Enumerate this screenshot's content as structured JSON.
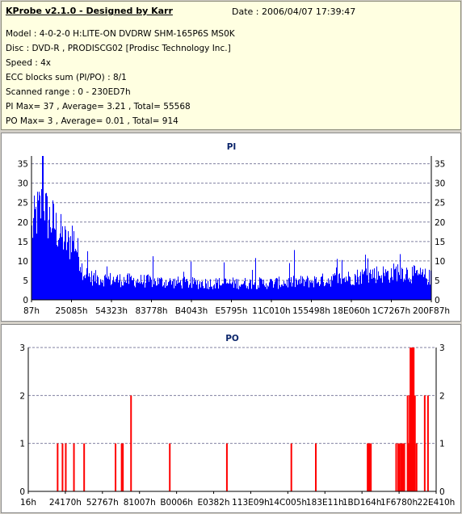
{
  "header": {
    "title": "KProbe v2.1.0 - Designed by Karr",
    "date": "Date : 2006/04/07 17:39:47",
    "lines": [
      "Model : 4-0-2-0 H:LITE-ON DVDRW SHM-165P6S MS0K",
      "Disc : DVD-R , PRODISCG02 [Prodisc Technology Inc.]",
      "Speed : 4x",
      "ECC blocks sum (PI/PO) : 8/1",
      "Scanned range : 0 - 230ED7h",
      "PI Max= 37 , Average= 3.21 , Total= 55568",
      "PO Max= 3 , Average= 0.01 , Total= 914"
    ]
  },
  "chart_data": [
    {
      "type": "bar",
      "title": "PI",
      "color": "#0000ff",
      "ylim": [
        0,
        37
      ],
      "yticks": [
        0,
        5,
        10,
        15,
        20,
        25,
        30,
        35
      ],
      "xticks": [
        "87h",
        "25085h",
        "54323h",
        "83778h",
        "B4043h",
        "E5795h",
        "11C010h",
        "155498h",
        "18E060h",
        "1C7267h",
        "200F87h"
      ],
      "x_range": [
        0,
        2289367
      ],
      "grid": "dashed horizontal",
      "summary": {
        "max": 37,
        "average": 3.21,
        "total": 55568
      },
      "profile": [
        [
          0.0,
          21
        ],
        [
          0.005,
          24
        ],
        [
          0.01,
          26
        ],
        [
          0.015,
          27
        ],
        [
          0.02,
          28
        ],
        [
          0.025,
          29
        ],
        [
          0.028,
          37
        ],
        [
          0.035,
          27
        ],
        [
          0.045,
          25
        ],
        [
          0.055,
          24
        ],
        [
          0.062,
          22
        ],
        [
          0.075,
          20
        ],
        [
          0.085,
          18
        ],
        [
          0.095,
          17
        ],
        [
          0.1,
          21
        ],
        [
          0.11,
          17
        ],
        [
          0.12,
          13
        ],
        [
          0.128,
          9
        ],
        [
          0.135,
          7
        ],
        [
          0.15,
          6
        ],
        [
          0.2,
          5.5
        ],
        [
          0.3,
          5
        ],
        [
          0.4,
          4.5
        ],
        [
          0.5,
          4.5
        ],
        [
          0.6,
          4.5
        ],
        [
          0.7,
          5
        ],
        [
          0.75,
          5.5
        ],
        [
          0.8,
          6
        ],
        [
          0.85,
          7
        ],
        [
          0.9,
          7
        ],
        [
          0.92,
          8
        ],
        [
          0.95,
          7
        ],
        [
          1.0,
          6
        ]
      ]
    },
    {
      "type": "bar",
      "title": "PO",
      "color": "#ff0000",
      "ylim": [
        0,
        3
      ],
      "yticks": [
        0,
        1,
        2,
        3
      ],
      "xticks": [
        "16h",
        "24170h",
        "52767h",
        "81007h",
        "B0006h",
        "E0382h",
        "113E09h",
        "14C005h",
        "183E11h",
        "1BD164h",
        "1F6780h",
        "22E410h"
      ],
      "x_range": [
        0,
        2289367
      ],
      "grid": "dashed horizontal",
      "summary": {
        "max": 3,
        "average": 0.01,
        "total": 914
      },
      "bars": [
        [
          0.07,
          1
        ],
        [
          0.082,
          1
        ],
        [
          0.09,
          1
        ],
        [
          0.11,
          1
        ],
        [
          0.135,
          1
        ],
        [
          0.212,
          1
        ],
        [
          0.227,
          1
        ],
        [
          0.23,
          1
        ],
        [
          0.25,
          2
        ],
        [
          0.345,
          1
        ],
        [
          0.485,
          1
        ],
        [
          0.643,
          1
        ],
        [
          0.703,
          1
        ],
        [
          0.83,
          1
        ],
        [
          0.832,
          1
        ],
        [
          0.835,
          1
        ],
        [
          0.838,
          1
        ],
        [
          0.9,
          1
        ],
        [
          0.905,
          1
        ],
        [
          0.908,
          1
        ],
        [
          0.912,
          1
        ],
        [
          0.915,
          1
        ],
        [
          0.918,
          1
        ],
        [
          0.92,
          1
        ],
        [
          0.928,
          2
        ],
        [
          0.93,
          1
        ],
        [
          0.933,
          2
        ],
        [
          0.935,
          3
        ],
        [
          0.937,
          3
        ],
        [
          0.939,
          3
        ],
        [
          0.941,
          3
        ],
        [
          0.943,
          3
        ],
        [
          0.946,
          2
        ],
        [
          0.95,
          1
        ],
        [
          0.97,
          2
        ],
        [
          0.978,
          2
        ]
      ]
    }
  ]
}
